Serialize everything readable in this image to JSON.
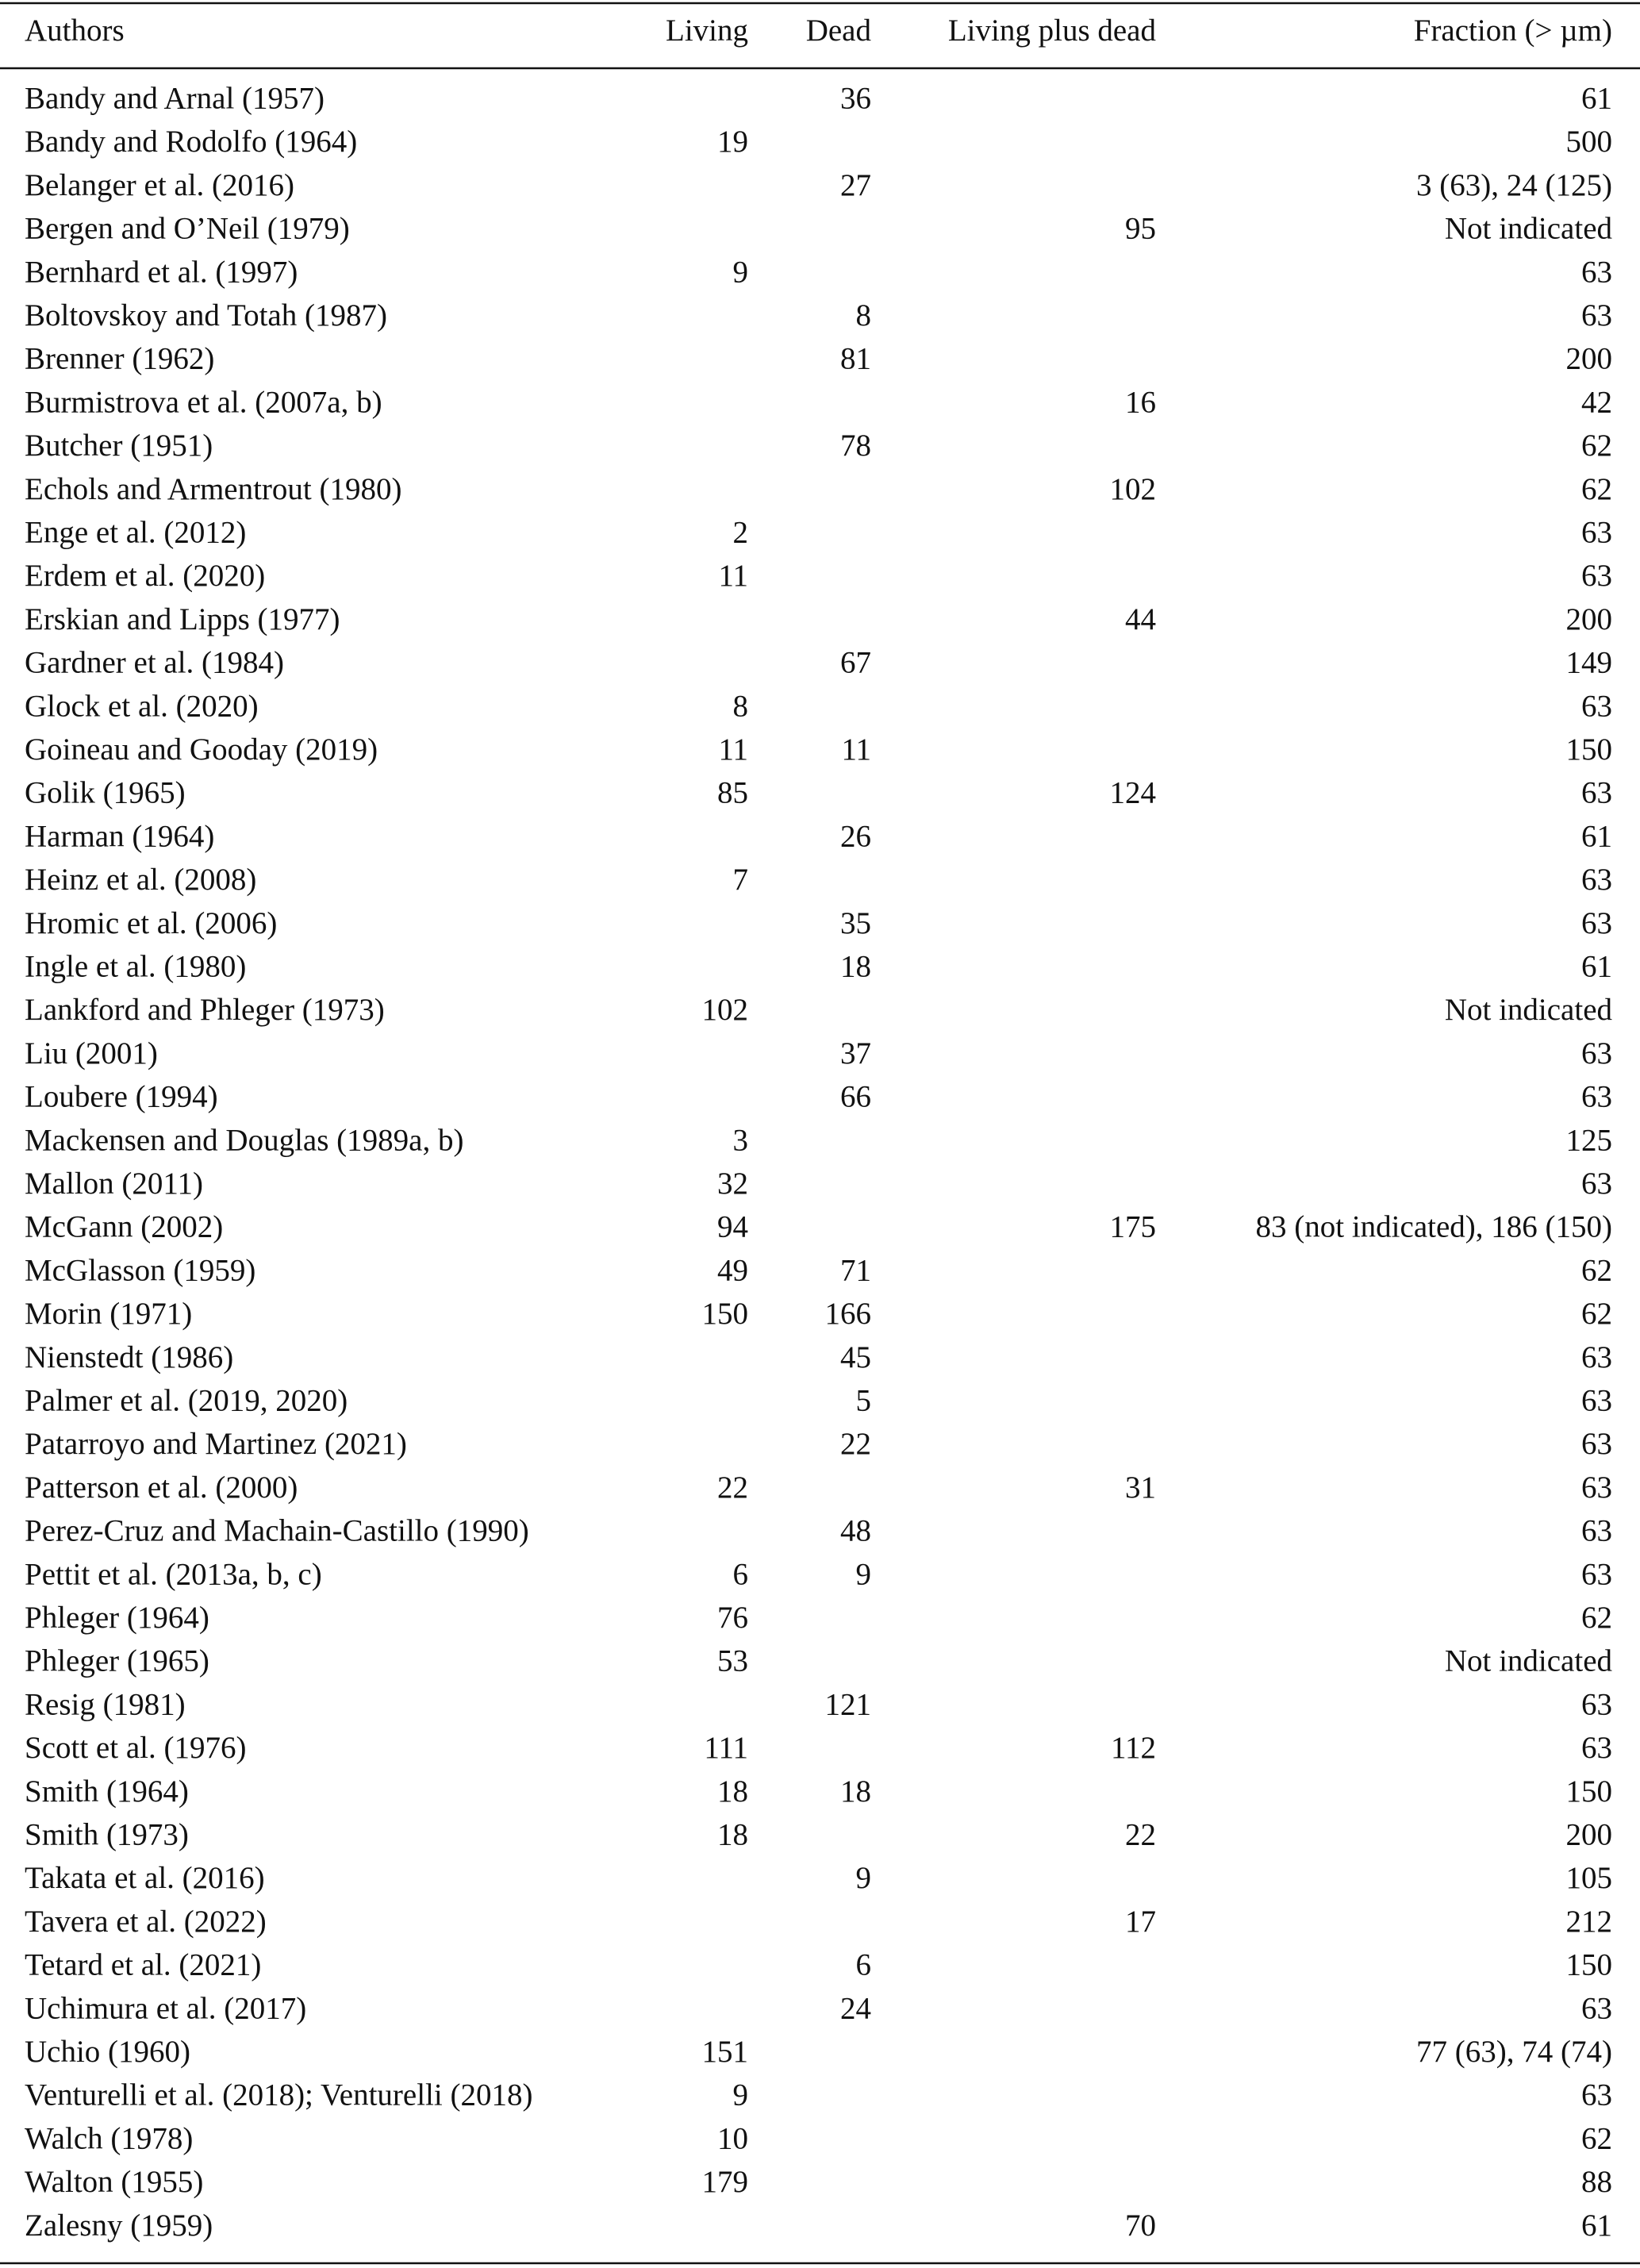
{
  "table": {
    "header": [
      "Authors",
      "Living",
      "Dead",
      "Living plus dead",
      "Fraction (> µm)"
    ],
    "rows": [
      [
        "Bandy and Arnal (1957)",
        null,
        36,
        null,
        61
      ],
      [
        "Bandy and Rodolfo (1964)",
        19,
        null,
        null,
        500
      ],
      [
        "Belanger et al. (2016)",
        null,
        27,
        null,
        "3 (63), 24 (125)"
      ],
      [
        "Bergen and O’Neil (1979)",
        null,
        null,
        95,
        "Not indicated"
      ],
      [
        "Bernhard et al. (1997)",
        9,
        null,
        null,
        63
      ],
      [
        "Boltovskoy and Totah (1987)",
        null,
        8,
        null,
        63
      ],
      [
        "Brenner (1962)",
        null,
        81,
        null,
        200
      ],
      [
        "Burmistrova et al. (2007a, b)",
        null,
        null,
        16,
        42
      ],
      [
        "Butcher (1951)",
        null,
        78,
        null,
        62
      ],
      [
        "Echols and Armentrout (1980)",
        null,
        null,
        102,
        62
      ],
      [
        "Enge et al. (2012)",
        2,
        null,
        null,
        63
      ],
      [
        "Erdem et al. (2020)",
        11,
        null,
        null,
        63
      ],
      [
        "Erskian and Lipps (1977)",
        null,
        null,
        44,
        200
      ],
      [
        "Gardner et al. (1984)",
        null,
        67,
        null,
        149
      ],
      [
        "Glock et al. (2020)",
        8,
        null,
        null,
        63
      ],
      [
        "Goineau and Gooday (2019)",
        11,
        11,
        null,
        150
      ],
      [
        "Golik (1965)",
        85,
        null,
        124,
        63
      ],
      [
        "Harman (1964)",
        null,
        26,
        null,
        61
      ],
      [
        "Heinz et al. (2008)",
        7,
        null,
        null,
        63
      ],
      [
        "Hromic et al. (2006)",
        null,
        35,
        null,
        63
      ],
      [
        "Ingle et al. (1980)",
        null,
        18,
        null,
        61
      ],
      [
        "Lankford and Phleger (1973)",
        102,
        null,
        null,
        "Not indicated"
      ],
      [
        "Liu (2001)",
        null,
        37,
        null,
        63
      ],
      [
        "Loubere (1994)",
        null,
        66,
        null,
        63
      ],
      [
        "Mackensen and Douglas (1989a, b)",
        3,
        null,
        null,
        125
      ],
      [
        "Mallon (2011)",
        32,
        null,
        null,
        63
      ],
      [
        "McGann (2002)",
        94,
        null,
        175,
        "83 (not indicated), 186 (150)"
      ],
      [
        "McGlasson (1959)",
        49,
        71,
        null,
        62
      ],
      [
        "Morin (1971)",
        150,
        166,
        null,
        62
      ],
      [
        "Nienstedt (1986)",
        null,
        45,
        null,
        63
      ],
      [
        "Palmer et al. (2019, 2020)",
        null,
        5,
        null,
        63
      ],
      [
        "Patarroyo and Martinez (2021)",
        null,
        22,
        null,
        63
      ],
      [
        "Patterson et al. (2000)",
        22,
        null,
        31,
        63
      ],
      [
        "Perez-Cruz and Machain-Castillo (1990)",
        null,
        48,
        null,
        63
      ],
      [
        "Pettit et al. (2013a, b, c)",
        6,
        9,
        null,
        63
      ],
      [
        "Phleger (1964)",
        76,
        null,
        null,
        62
      ],
      [
        "Phleger (1965)",
        53,
        null,
        null,
        "Not indicated"
      ],
      [
        "Resig (1981)",
        null,
        121,
        null,
        63
      ],
      [
        "Scott et al. (1976)",
        111,
        null,
        112,
        63
      ],
      [
        "Smith (1964)",
        18,
        18,
        null,
        150
      ],
      [
        "Smith (1973)",
        18,
        null,
        22,
        200
      ],
      [
        "Takata et al. (2016)",
        null,
        9,
        null,
        105
      ],
      [
        "Tavera et al. (2022)",
        null,
        null,
        17,
        212
      ],
      [
        "Tetard et al. (2021)",
        null,
        6,
        null,
        150
      ],
      [
        "Uchimura et al. (2017)",
        null,
        24,
        null,
        63
      ],
      [
        "Uchio (1960)",
        151,
        null,
        null,
        "77 (63), 74 (74)"
      ],
      [
        "Venturelli et al. (2018); Venturelli (2018)",
        9,
        null,
        null,
        63
      ],
      [
        "Walch (1978)",
        10,
        null,
        null,
        62
      ],
      [
        "Walton (1955)",
        179,
        null,
        null,
        88
      ],
      [
        "Zalesny (1959)",
        null,
        null,
        70,
        61
      ]
    ]
  }
}
